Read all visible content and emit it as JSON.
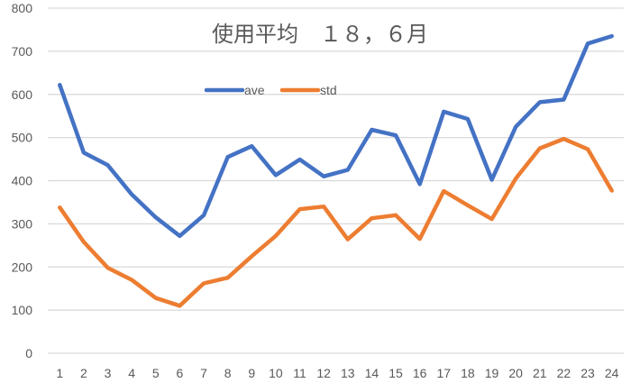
{
  "chart_data": {
    "type": "line",
    "title": "使用平均　１８，６月",
    "xlabel": "",
    "ylabel": "",
    "ylim": [
      0,
      800
    ],
    "yticks": [
      0,
      100,
      200,
      300,
      400,
      500,
      600,
      700,
      800
    ],
    "grid": true,
    "legend_position": "top-inside",
    "categories": [
      "1",
      "2",
      "3",
      "4",
      "5",
      "6",
      "7",
      "8",
      "9",
      "10",
      "11",
      "12",
      "13",
      "14",
      "15",
      "16",
      "17",
      "18",
      "19",
      "20",
      "21",
      "22",
      "23",
      "24"
    ],
    "series": [
      {
        "name": "ave",
        "color": "#4472C4",
        "values": [
          622,
          465,
          436,
          368,
          315,
          272,
          320,
          455,
          480,
          413,
          449,
          410,
          425,
          518,
          505,
          392,
          560,
          543,
          402,
          525,
          582,
          588,
          718,
          735
        ]
      },
      {
        "name": "std",
        "color": "#ED7D31",
        "values": [
          338,
          258,
          198,
          170,
          128,
          110,
          162,
          175,
          225,
          272,
          334,
          340,
          264,
          313,
          320,
          265,
          376,
          343,
          311,
          405,
          475,
          497,
          473,
          377
        ]
      }
    ]
  }
}
